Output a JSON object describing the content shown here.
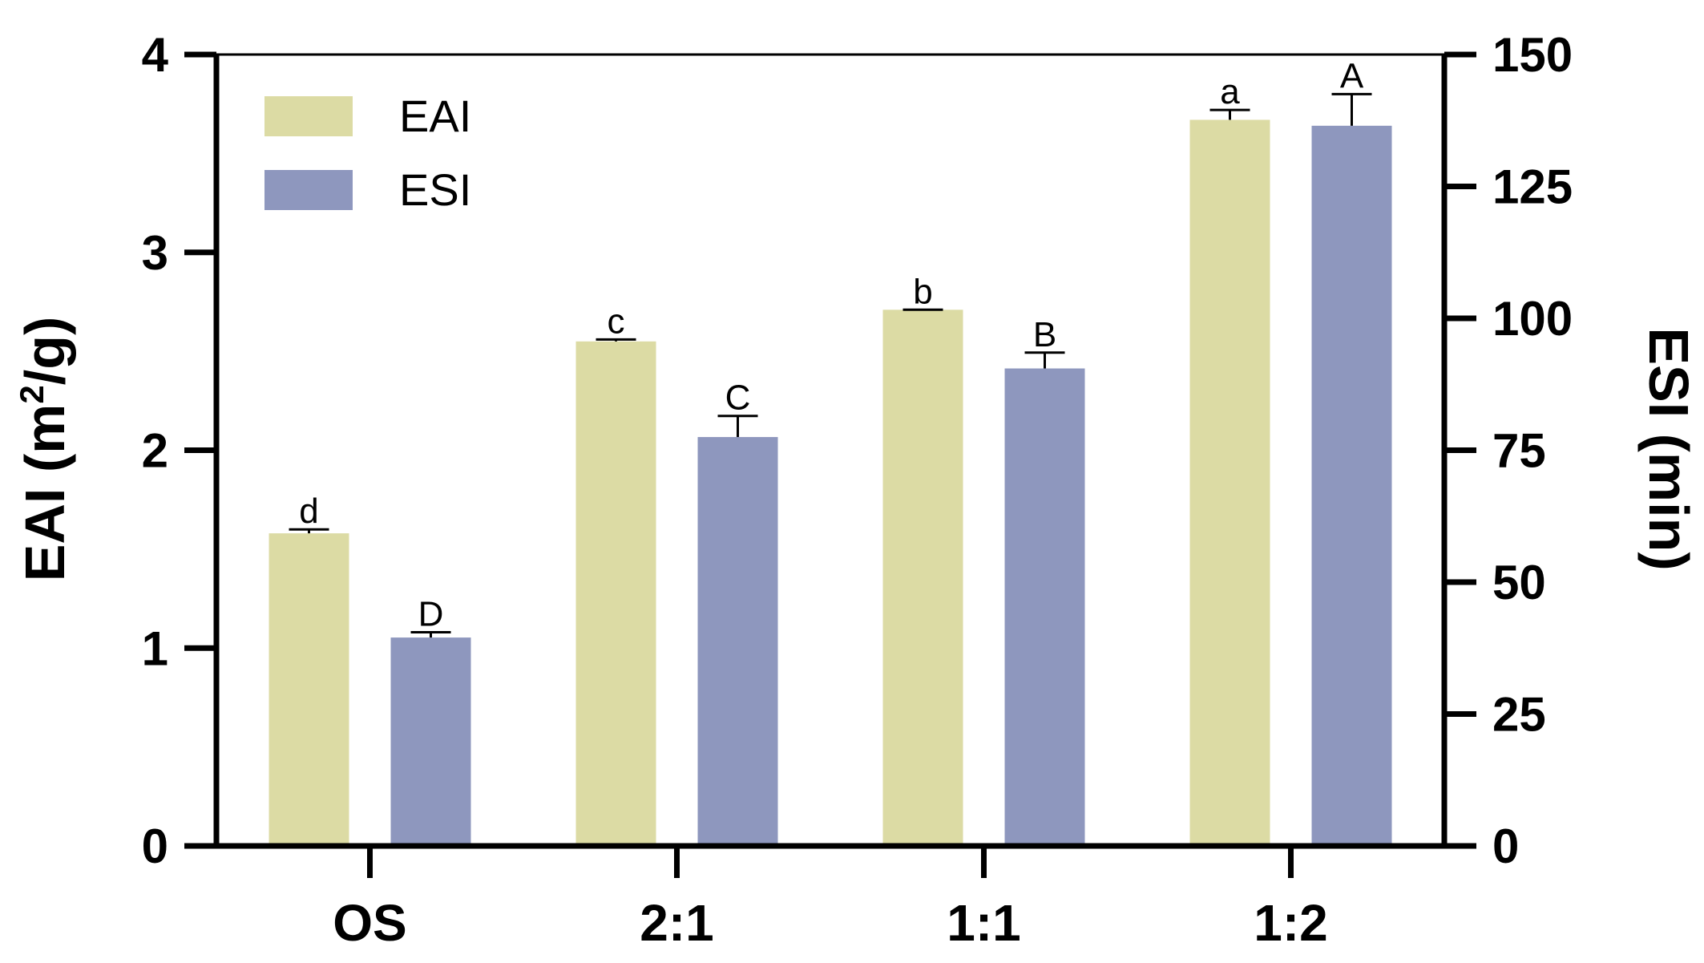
{
  "chart_data": {
    "type": "bar",
    "categories": [
      "OS",
      "2:1",
      "1:1",
      "1:2"
    ],
    "series": [
      {
        "name": "EAI",
        "axis": "left",
        "values": [
          1.58,
          2.55,
          2.71,
          3.67
        ],
        "errors": [
          0.02,
          0.01,
          0.0,
          0.05
        ],
        "significance": [
          "d",
          "c",
          "b",
          "a"
        ],
        "color": "#dcdba4"
      },
      {
        "name": "ESI",
        "axis": "right",
        "values": [
          39.5,
          77.5,
          90.5,
          136.5
        ],
        "errors": [
          1.0,
          4.0,
          3.0,
          6.0
        ],
        "significance": [
          "D",
          "C",
          "B",
          "A"
        ],
        "color": "#8e97be"
      }
    ],
    "left_axis": {
      "title_main": "EAI (m",
      "title_sup": "2",
      "title_end": "/g)",
      "ylim": [
        0,
        4
      ],
      "ticks": [
        "0",
        "1",
        "2",
        "3",
        "4"
      ]
    },
    "right_axis": {
      "title": "ESI (min)",
      "ylim": [
        0,
        150
      ],
      "ticks": [
        "0",
        "25",
        "50",
        "75",
        "100",
        "125",
        "150"
      ]
    },
    "legend": {
      "position": "top-left",
      "entries": [
        "EAI",
        "ESI"
      ]
    },
    "grid": false
  }
}
